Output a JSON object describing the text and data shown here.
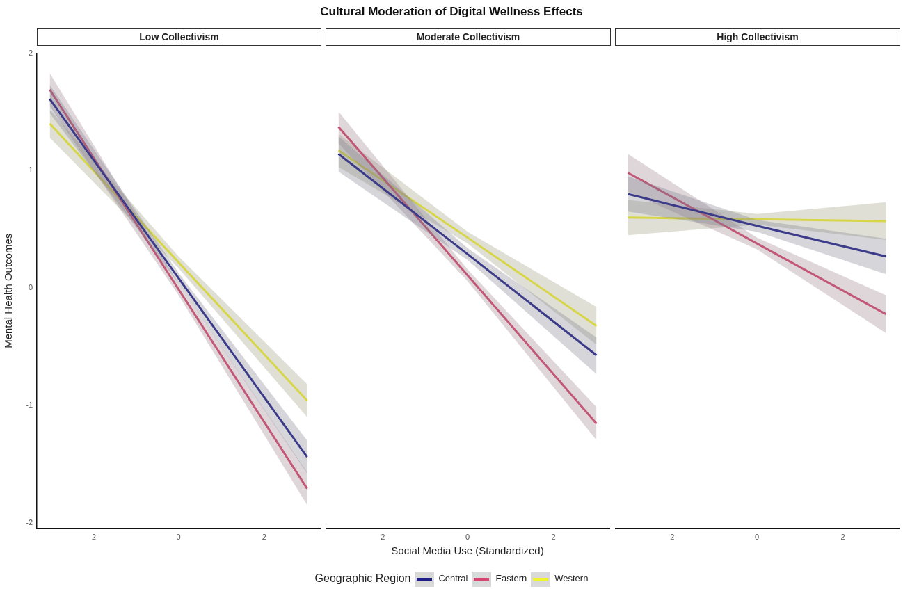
{
  "chart_data": [
    {
      "type": "line",
      "title": "Low Collectivism",
      "ylabel": "Mental Health Outcomes",
      "x": [
        -3,
        0,
        3
      ],
      "xlim": [
        -3.3,
        3.3
      ],
      "xticks": [
        -2,
        0,
        2
      ],
      "ylim": [
        -2.05,
        2
      ],
      "yticks": [
        -2,
        -1,
        0,
        1,
        2
      ],
      "grid": false,
      "marker": "none",
      "series": [
        {
          "color": "#1c1c8a",
          "values": [
            1.61,
            0.085,
            -1.44
          ],
          "lower": [
            1.49,
            0.04,
            -1.58
          ],
          "upper": [
            1.73,
            0.13,
            -1.3
          ]
        },
        {
          "color": "#d6456f",
          "values": [
            1.69,
            -0.01,
            -1.71
          ],
          "lower": [
            1.55,
            -0.06,
            -1.85
          ],
          "upper": [
            1.83,
            0.04,
            -1.57
          ]
        },
        {
          "color": "#f2f22e",
          "values": [
            1.4,
            0.22,
            -0.96
          ],
          "lower": [
            1.28,
            0.17,
            -1.1
          ],
          "upper": [
            1.52,
            0.27,
            -0.82
          ]
        }
      ]
    },
    {
      "type": "line",
      "title": "Moderate Collectivism",
      "annotations": [
        "Cultural Moderation of Digital Wellness Effects"
      ],
      "xlabel": "Social Media Use (Standardized)",
      "legend_title": "Geographic Region",
      "x": [
        -3,
        0,
        3
      ],
      "xlim": [
        -3.3,
        3.3
      ],
      "xticks": [
        -2,
        0,
        2
      ],
      "ylim": [
        -2.05,
        2
      ],
      "yticks": [
        -2,
        -1,
        0,
        1,
        2
      ],
      "tick_labels": "x",
      "grid": false,
      "legend": "bottom",
      "marker": "none",
      "series": [
        {
          "name": "Central",
          "color": "#1c1c8a",
          "values": [
            1.13,
            0.28,
            -0.58
          ],
          "lower": [
            0.98,
            0.23,
            -0.74
          ],
          "upper": [
            1.28,
            0.33,
            -0.43
          ]
        },
        {
          "name": "Eastern",
          "color": "#d6456f",
          "values": [
            1.36,
            0.1,
            -1.16
          ],
          "lower": [
            1.22,
            0.05,
            -1.3
          ],
          "upper": [
            1.49,
            0.15,
            -1.02
          ]
        },
        {
          "name": "Western",
          "color": "#f2f22e",
          "values": [
            1.16,
            0.42,
            -0.33
          ],
          "lower": [
            1.02,
            0.37,
            -0.49
          ],
          "upper": [
            1.3,
            0.47,
            -0.17
          ]
        }
      ]
    },
    {
      "type": "line",
      "title": "High Collectivism",
      "x": [
        -3,
        0,
        3
      ],
      "xlim": [
        -3.3,
        3.3
      ],
      "xticks": [
        -2,
        0,
        2
      ],
      "ylim": [
        -2.05,
        2
      ],
      "yticks": [
        -2,
        -1,
        0,
        1,
        2
      ],
      "tick_labels": "x",
      "grid": false,
      "marker": "none",
      "series": [
        {
          "color": "#1c1c8a",
          "values": [
            0.79,
            0.52,
            0.26
          ],
          "lower": [
            0.64,
            0.47,
            0.11
          ],
          "upper": [
            0.94,
            0.57,
            0.41
          ]
        },
        {
          "color": "#d6456f",
          "values": [
            0.97,
            0.37,
            -0.23
          ],
          "lower": [
            0.81,
            0.32,
            -0.39
          ],
          "upper": [
            1.13,
            0.42,
            -0.07
          ]
        },
        {
          "color": "#f2f22e",
          "values": [
            0.59,
            0.575,
            0.56
          ],
          "lower": [
            0.44,
            0.53,
            0.4
          ],
          "upper": [
            0.74,
            0.62,
            0.72
          ]
        }
      ]
    }
  ]
}
